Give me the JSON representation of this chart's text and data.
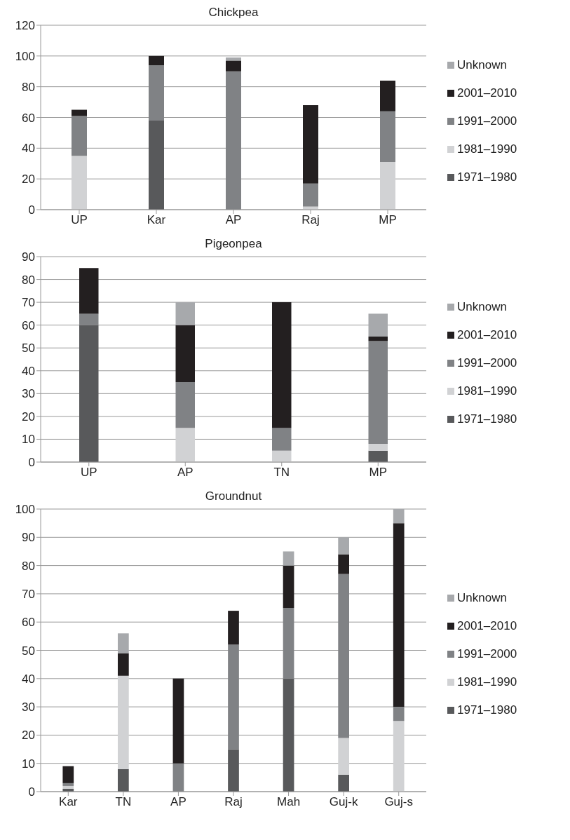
{
  "chart_data": [
    {
      "type": "bar",
      "title": "Chickpea",
      "stacked": true,
      "categories": [
        "UP",
        "Kar",
        "AP",
        "Raj",
        "MP"
      ],
      "ylim": [
        0,
        120
      ],
      "yticks": [
        0,
        20,
        40,
        60,
        80,
        100,
        120
      ],
      "grid": "y",
      "legend": "right",
      "series": [
        {
          "name": "1971–1980",
          "color": "#58595b",
          "values": [
            0,
            58,
            0,
            0,
            0
          ]
        },
        {
          "name": "1981–1990",
          "color": "#d1d2d4",
          "values": [
            35,
            0,
            0,
            2,
            31
          ]
        },
        {
          "name": "1991–2000",
          "color": "#808285",
          "values": [
            26,
            36,
            90,
            15,
            33
          ]
        },
        {
          "name": "2001–2010",
          "color": "#231f20",
          "values": [
            4,
            6,
            7,
            51,
            20
          ]
        },
        {
          "name": "Unknown",
          "color": "#a7a9ac",
          "values": [
            0,
            0,
            2,
            0,
            0
          ]
        }
      ]
    },
    {
      "type": "bar",
      "title": "Pigeonpea",
      "stacked": true,
      "categories": [
        "UP",
        "AP",
        "TN",
        "MP"
      ],
      "ylim": [
        0,
        90
      ],
      "yticks": [
        0,
        10,
        20,
        30,
        40,
        50,
        60,
        70,
        80,
        90
      ],
      "grid": "y",
      "legend": "right",
      "series": [
        {
          "name": "1971–1980",
          "color": "#58595b",
          "values": [
            60,
            0,
            0,
            5
          ]
        },
        {
          "name": "1981–1990",
          "color": "#d1d2d4",
          "values": [
            0,
            15,
            5,
            3
          ]
        },
        {
          "name": "1991–2000",
          "color": "#808285",
          "values": [
            5,
            20,
            10,
            45
          ]
        },
        {
          "name": "2001–2010",
          "color": "#231f20",
          "values": [
            20,
            25,
            55,
            2
          ]
        },
        {
          "name": "Unknown",
          "color": "#a7a9ac",
          "values": [
            0,
            10,
            0,
            10
          ]
        }
      ]
    },
    {
      "type": "bar",
      "title": "Groundnut",
      "stacked": true,
      "categories": [
        "Kar",
        "TN",
        "AP",
        "Raj",
        "Mah",
        "Guj-k",
        "Guj-s"
      ],
      "ylim": [
        0,
        100
      ],
      "yticks": [
        0,
        10,
        20,
        30,
        40,
        50,
        60,
        70,
        80,
        90,
        100
      ],
      "grid": "y",
      "legend": "right",
      "series": [
        {
          "name": "1971–1980",
          "color": "#58595b",
          "values": [
            1,
            8,
            0,
            15,
            40,
            6,
            0
          ]
        },
        {
          "name": "1981–1990",
          "color": "#d1d2d4",
          "values": [
            1,
            33,
            0,
            0,
            0,
            13,
            25
          ]
        },
        {
          "name": "1991–2000",
          "color": "#808285",
          "values": [
            1,
            0,
            10,
            37,
            25,
            58,
            5
          ]
        },
        {
          "name": "2001–2010",
          "color": "#231f20",
          "values": [
            6,
            8,
            30,
            12,
            15,
            7,
            65
          ]
        },
        {
          "name": "Unknown",
          "color": "#a7a9ac",
          "values": [
            0,
            7,
            0,
            0,
            5,
            6,
            5
          ]
        }
      ]
    }
  ]
}
